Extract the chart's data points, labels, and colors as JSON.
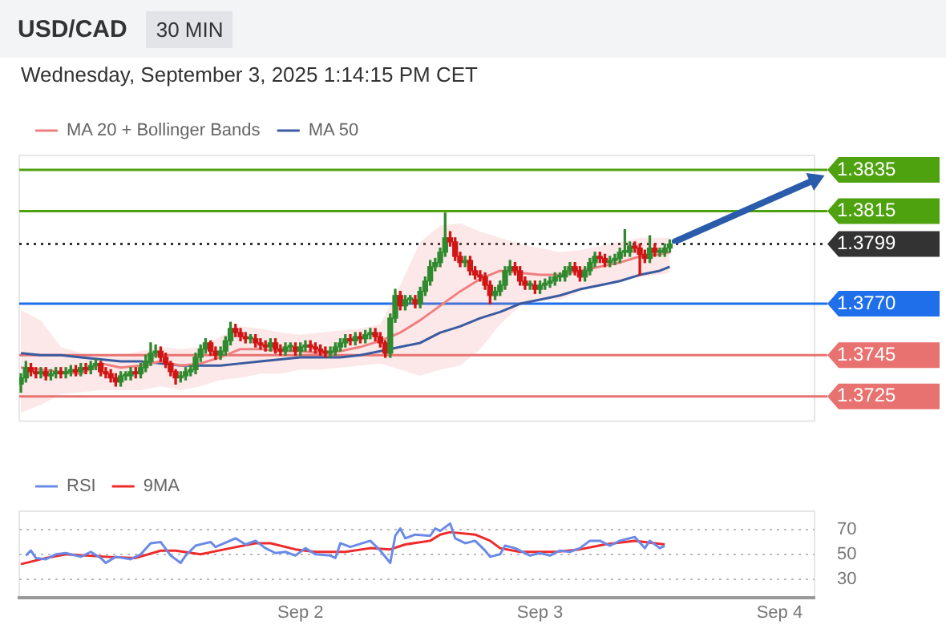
{
  "chart_data": [
    {
      "type": "candlestick",
      "title": "USD/CAD",
      "subtitle": "30 MIN",
      "annotations": [
        "Wednesday, September 3, 2025 1:14:15 PM CET"
      ],
      "legend": "top left",
      "tick_labels": "y",
      "xlim": [
        "2025-08-31T19:50",
        "2025-09-04T03:30"
      ],
      "ylim": [
        1.3713,
        1.3842
      ],
      "yticks": [
        1.3835,
        1.3815,
        1.3799,
        {
          "value": 1.377,
          "label": "1.3770"
        },
        1.3745,
        1.3725
      ],
      "x": [
        "2025-08-31T20:00",
        "2025-08-31T20:30",
        "2025-08-31T21:00",
        "2025-08-31T21:30",
        "2025-08-31T22:00",
        "2025-08-31T22:30",
        "2025-08-31T23:00",
        "2025-08-31T23:30",
        "2025-09-01T00:00",
        "2025-09-01T00:30",
        "2025-09-01T01:00",
        "2025-09-01T01:30",
        "2025-09-01T02:00",
        "2025-09-01T02:30",
        "2025-09-01T03:00",
        "2025-09-01T03:30",
        "2025-09-01T04:00",
        "2025-09-01T04:30",
        "2025-09-01T05:00",
        "2025-09-01T05:30",
        "2025-09-01T06:00",
        "2025-09-01T06:30",
        "2025-09-01T07:00",
        "2025-09-01T07:30",
        "2025-09-01T08:00",
        "2025-09-01T08:30",
        "2025-09-01T09:00",
        "2025-09-01T09:30",
        "2025-09-01T10:00",
        "2025-09-01T10:30",
        "2025-09-01T11:00",
        "2025-09-01T11:30",
        "2025-09-01T12:00",
        "2025-09-01T12:30",
        "2025-09-01T13:00",
        "2025-09-01T13:30",
        "2025-09-01T14:00",
        "2025-09-01T14:30",
        "2025-09-01T15:00",
        "2025-09-01T15:30",
        "2025-09-01T16:00",
        "2025-09-01T16:30",
        "2025-09-01T17:00",
        "2025-09-01T17:30",
        "2025-09-01T18:00",
        "2025-09-01T18:30",
        "2025-09-01T19:00",
        "2025-09-01T19:30",
        "2025-09-01T20:00",
        "2025-09-01T20:30",
        "2025-09-01T21:00",
        "2025-09-01T21:30",
        "2025-09-01T22:00",
        "2025-09-01T22:30",
        "2025-09-01T23:00",
        "2025-09-01T23:30",
        "2025-09-02T00:00",
        "2025-09-02T00:30",
        "2025-09-02T01:00",
        "2025-09-02T01:30",
        "2025-09-02T02:00",
        "2025-09-02T02:30",
        "2025-09-02T03:00",
        "2025-09-02T03:30",
        "2025-09-02T04:00",
        "2025-09-02T04:30",
        "2025-09-02T05:00",
        "2025-09-02T05:30",
        "2025-09-02T06:00",
        "2025-09-02T06:30",
        "2025-09-02T07:00",
        "2025-09-02T07:30",
        "2025-09-02T08:00",
        "2025-09-02T08:30",
        "2025-09-02T09:00",
        "2025-09-02T09:30",
        "2025-09-02T10:00",
        "2025-09-02T10:30",
        "2025-09-02T11:00",
        "2025-09-02T11:30",
        "2025-09-02T12:00",
        "2025-09-02T12:30",
        "2025-09-02T13:00",
        "2025-09-02T13:30",
        "2025-09-02T14:00",
        "2025-09-02T14:30",
        "2025-09-02T15:00",
        "2025-09-02T15:30",
        "2025-09-02T16:00",
        "2025-09-02T16:30",
        "2025-09-02T17:00",
        "2025-09-02T17:30",
        "2025-09-02T18:00",
        "2025-09-02T18:30",
        "2025-09-02T19:00",
        "2025-09-02T19:30",
        "2025-09-02T20:00",
        "2025-09-02T20:30",
        "2025-09-02T21:00",
        "2025-09-02T21:30",
        "2025-09-02T22:00",
        "2025-09-02T22:30",
        "2025-09-02T23:00",
        "2025-09-02T23:30",
        "2025-09-03T00:00",
        "2025-09-03T00:30",
        "2025-09-03T01:00",
        "2025-09-03T01:30",
        "2025-09-03T02:00",
        "2025-09-03T02:30",
        "2025-09-03T03:00",
        "2025-09-03T03:30",
        "2025-09-03T04:00",
        "2025-09-03T04:30",
        "2025-09-03T05:00",
        "2025-09-03T05:30",
        "2025-09-03T06:00",
        "2025-09-03T06:30",
        "2025-09-03T07:00",
        "2025-09-03T07:30",
        "2025-09-03T08:00",
        "2025-09-03T08:30",
        "2025-09-03T09:00",
        "2025-09-03T09:30",
        "2025-09-03T10:00",
        "2025-09-03T10:30",
        "2025-09-03T11:00",
        "2025-09-03T11:30",
        "2025-09-03T12:00",
        "2025-09-03T12:30",
        "2025-09-03T13:00"
      ],
      "ohlc": [
        [
          1.3731,
          1.3736,
          1.3727,
          1.3734
        ],
        [
          1.3734,
          1.3742,
          1.3732,
          1.3739
        ],
        [
          1.3739,
          1.3741,
          1.3735,
          1.3737
        ],
        [
          1.3737,
          1.3739,
          1.3734,
          1.3736
        ],
        [
          1.3736,
          1.3739,
          1.3734,
          1.3737
        ],
        [
          1.3737,
          1.3739,
          1.3733,
          1.3735
        ],
        [
          1.3735,
          1.3738,
          1.3733,
          1.3736
        ],
        [
          1.3736,
          1.3739,
          1.3734,
          1.3737
        ],
        [
          1.3737,
          1.3739,
          1.3734,
          1.3736
        ],
        [
          1.3736,
          1.3739,
          1.3734,
          1.3737
        ],
        [
          1.3737,
          1.374,
          1.3735,
          1.3738
        ],
        [
          1.3738,
          1.374,
          1.3735,
          1.3737
        ],
        [
          1.3737,
          1.3741,
          1.3735,
          1.3739
        ],
        [
          1.3739,
          1.3741,
          1.3736,
          1.3738
        ],
        [
          1.3738,
          1.3742,
          1.3736,
          1.374
        ],
        [
          1.374,
          1.3743,
          1.3738,
          1.3741
        ],
        [
          1.3741,
          1.3742,
          1.3735,
          1.3737
        ],
        [
          1.3737,
          1.3739,
          1.3734,
          1.3736
        ],
        [
          1.3736,
          1.3738,
          1.3732,
          1.3734
        ],
        [
          1.3734,
          1.3736,
          1.373,
          1.3732
        ],
        [
          1.3732,
          1.3737,
          1.373,
          1.3735
        ],
        [
          1.3735,
          1.3737,
          1.3733,
          1.3735
        ],
        [
          1.3735,
          1.3739,
          1.3733,
          1.3737
        ],
        [
          1.3737,
          1.3739,
          1.3734,
          1.3736
        ],
        [
          1.3736,
          1.3741,
          1.3734,
          1.3739
        ],
        [
          1.3739,
          1.3745,
          1.3737,
          1.3742
        ],
        [
          1.3742,
          1.3751,
          1.374,
          1.3746
        ],
        [
          1.3746,
          1.375,
          1.3744,
          1.3747
        ],
        [
          1.3747,
          1.3749,
          1.3742,
          1.3744
        ],
        [
          1.3744,
          1.3746,
          1.3739,
          1.3741
        ],
        [
          1.3741,
          1.3742,
          1.3735,
          1.3737
        ],
        [
          1.3737,
          1.3738,
          1.3731,
          1.3734
        ],
        [
          1.3734,
          1.3737,
          1.3732,
          1.3735
        ],
        [
          1.3735,
          1.3739,
          1.3733,
          1.3737
        ],
        [
          1.3737,
          1.374,
          1.3735,
          1.3738
        ],
        [
          1.3738,
          1.3746,
          1.3736,
          1.3744
        ],
        [
          1.3744,
          1.375,
          1.3742,
          1.3748
        ],
        [
          1.3748,
          1.3753,
          1.3746,
          1.3751
        ],
        [
          1.3751,
          1.3752,
          1.3745,
          1.3747
        ],
        [
          1.3747,
          1.3749,
          1.3743,
          1.3745
        ],
        [
          1.3745,
          1.3749,
          1.3743,
          1.3747
        ],
        [
          1.3747,
          1.3754,
          1.3745,
          1.3752
        ],
        [
          1.3752,
          1.3761,
          1.375,
          1.3758
        ],
        [
          1.3758,
          1.376,
          1.3754,
          1.3756
        ],
        [
          1.3756,
          1.3758,
          1.3752,
          1.3754
        ],
        [
          1.3754,
          1.3756,
          1.3751,
          1.3753
        ],
        [
          1.3753,
          1.3755,
          1.3751,
          1.3753
        ],
        [
          1.3753,
          1.3755,
          1.3749,
          1.3751
        ],
        [
          1.3751,
          1.3753,
          1.3748,
          1.375
        ],
        [
          1.375,
          1.3752,
          1.3747,
          1.3749
        ],
        [
          1.3749,
          1.3753,
          1.3747,
          1.3751
        ],
        [
          1.3751,
          1.3753,
          1.3746,
          1.3748
        ],
        [
          1.3748,
          1.375,
          1.3745,
          1.3747
        ],
        [
          1.3747,
          1.3751,
          1.3745,
          1.3749
        ],
        [
          1.3749,
          1.3751,
          1.3747,
          1.3749
        ],
        [
          1.3749,
          1.3751,
          1.3745,
          1.3747
        ],
        [
          1.3747,
          1.3751,
          1.3745,
          1.3749
        ],
        [
          1.3749,
          1.3752,
          1.3747,
          1.375
        ],
        [
          1.375,
          1.3752,
          1.3747,
          1.3749
        ],
        [
          1.3749,
          1.3751,
          1.3746,
          1.3748
        ],
        [
          1.3748,
          1.375,
          1.3745,
          1.3747
        ],
        [
          1.3747,
          1.3749,
          1.3744,
          1.3746
        ],
        [
          1.3746,
          1.3749,
          1.3744,
          1.3747
        ],
        [
          1.3747,
          1.3751,
          1.3745,
          1.3749
        ],
        [
          1.3749,
          1.3753,
          1.3747,
          1.3751
        ],
        [
          1.3751,
          1.3755,
          1.3749,
          1.3753
        ],
        [
          1.3753,
          1.3755,
          1.375,
          1.3752
        ],
        [
          1.3752,
          1.3756,
          1.375,
          1.3754
        ],
        [
          1.3754,
          1.3756,
          1.3751,
          1.3753
        ],
        [
          1.3753,
          1.3757,
          1.3751,
          1.3755
        ],
        [
          1.3755,
          1.3758,
          1.3753,
          1.3756
        ],
        [
          1.3756,
          1.3758,
          1.3752,
          1.3754
        ],
        [
          1.3754,
          1.3756,
          1.3749,
          1.3751
        ],
        [
          1.3751,
          1.3752,
          1.3744,
          1.3746
        ],
        [
          1.3746,
          1.3765,
          1.3744,
          1.3763
        ],
        [
          1.3763,
          1.3777,
          1.3761,
          1.3774
        ],
        [
          1.3774,
          1.3776,
          1.3767,
          1.3769
        ],
        [
          1.3769,
          1.3774,
          1.3767,
          1.3772
        ],
        [
          1.3772,
          1.3774,
          1.377,
          1.3772
        ],
        [
          1.3772,
          1.3774,
          1.3768,
          1.377
        ],
        [
          1.377,
          1.3778,
          1.3768,
          1.3776
        ],
        [
          1.3776,
          1.3783,
          1.3774,
          1.3781
        ],
        [
          1.3781,
          1.3791,
          1.3779,
          1.3788
        ],
        [
          1.3788,
          1.3792,
          1.3786,
          1.379
        ],
        [
          1.379,
          1.3797,
          1.3788,
          1.3795
        ],
        [
          1.3795,
          1.3814,
          1.3793,
          1.3802
        ],
        [
          1.3802,
          1.3805,
          1.3798,
          1.38
        ],
        [
          1.38,
          1.3802,
          1.3791,
          1.3793
        ],
        [
          1.3793,
          1.3795,
          1.3788,
          1.379
        ],
        [
          1.379,
          1.3793,
          1.3788,
          1.3791
        ],
        [
          1.3791,
          1.3793,
          1.3784,
          1.3786
        ],
        [
          1.3786,
          1.3788,
          1.3782,
          1.3784
        ],
        [
          1.3784,
          1.3786,
          1.3781,
          1.3783
        ],
        [
          1.3783,
          1.3785,
          1.3777,
          1.3779
        ],
        [
          1.3779,
          1.3781,
          1.377,
          1.3774
        ],
        [
          1.3774,
          1.3778,
          1.3772,
          1.3776
        ],
        [
          1.3776,
          1.3781,
          1.3774,
          1.3779
        ],
        [
          1.3779,
          1.3788,
          1.3777,
          1.3786
        ],
        [
          1.3786,
          1.3791,
          1.3784,
          1.3788
        ],
        [
          1.3788,
          1.379,
          1.3784,
          1.3786
        ],
        [
          1.3786,
          1.3788,
          1.3779,
          1.3781
        ],
        [
          1.3781,
          1.3783,
          1.3777,
          1.3779
        ],
        [
          1.3779,
          1.3781,
          1.3777,
          1.3779
        ],
        [
          1.3779,
          1.3781,
          1.3775,
          1.3777
        ],
        [
          1.3777,
          1.3781,
          1.3775,
          1.3779
        ],
        [
          1.3779,
          1.3782,
          1.3777,
          1.378
        ],
        [
          1.378,
          1.3783,
          1.3778,
          1.3781
        ],
        [
          1.3781,
          1.3785,
          1.3779,
          1.3783
        ],
        [
          1.3783,
          1.3785,
          1.3781,
          1.3783
        ],
        [
          1.3783,
          1.3788,
          1.3781,
          1.3786
        ],
        [
          1.3786,
          1.379,
          1.3784,
          1.3788
        ],
        [
          1.3788,
          1.379,
          1.3784,
          1.3786
        ],
        [
          1.3786,
          1.3788,
          1.3781,
          1.3783
        ],
        [
          1.3783,
          1.3788,
          1.3781,
          1.3786
        ],
        [
          1.3786,
          1.3792,
          1.3784,
          1.379
        ],
        [
          1.379,
          1.3795,
          1.3788,
          1.3793
        ],
        [
          1.3793,
          1.3795,
          1.379,
          1.3792
        ],
        [
          1.3792,
          1.3794,
          1.3788,
          1.379
        ],
        [
          1.379,
          1.3793,
          1.3788,
          1.3791
        ],
        [
          1.3791,
          1.3794,
          1.3789,
          1.3792
        ],
        [
          1.3792,
          1.3797,
          1.379,
          1.3795
        ],
        [
          1.3795,
          1.3806,
          1.3793,
          1.3795
        ],
        [
          1.3795,
          1.38,
          1.3793,
          1.3798
        ],
        [
          1.3798,
          1.38,
          1.3795,
          1.3797
        ],
        [
          1.3797,
          1.3799,
          1.3784,
          1.3794
        ],
        [
          1.3794,
          1.3796,
          1.379,
          1.3792
        ],
        [
          1.3792,
          1.3803,
          1.379,
          1.3797
        ],
        [
          1.3797,
          1.3799,
          1.3793,
          1.3795
        ],
        [
          1.3795,
          1.3797,
          1.3793,
          1.3795
        ],
        [
          1.3795,
          1.3799,
          1.3793,
          1.3797
        ],
        [
          1.3797,
          1.3801,
          1.3795,
          1.3799
        ]
      ],
      "series": [
        {
          "name": "MA 20 + Bollinger Bands",
          "type": "line",
          "color": "#f07f7f",
          "x": [
            "2025-08-31T20:00",
            "2025-08-31T22:00",
            "2025-09-01T00:00",
            "2025-09-01T02:00",
            "2025-09-01T04:00",
            "2025-09-01T06:00",
            "2025-09-01T08:00",
            "2025-09-01T10:00",
            "2025-09-01T12:00",
            "2025-09-01T14:00",
            "2025-09-01T16:00",
            "2025-09-01T18:00",
            "2025-09-01T20:00",
            "2025-09-01T22:00",
            "2025-09-02T00:00",
            "2025-09-02T02:00",
            "2025-09-02T04:00",
            "2025-09-02T06:00",
            "2025-09-02T08:00",
            "2025-09-02T10:00",
            "2025-09-02T12:00",
            "2025-09-02T14:00",
            "2025-09-02T16:00",
            "2025-09-02T18:00",
            "2025-09-02T20:00",
            "2025-09-02T22:00",
            "2025-09-03T00:00",
            "2025-09-03T02:00",
            "2025-09-03T04:00",
            "2025-09-03T06:00",
            "2025-09-03T08:00",
            "2025-09-03T10:00",
            "2025-09-03T12:00",
            "2025-09-03T13:00"
          ],
          "values": [
            1.3739,
            1.3738,
            1.3737,
            1.3736,
            1.3741,
            1.3739,
            1.374,
            1.3742,
            1.374,
            1.3741,
            1.3744,
            1.3748,
            1.3748,
            1.3747,
            1.3747,
            1.3746,
            1.3747,
            1.3749,
            1.3752,
            1.3756,
            1.3762,
            1.3769,
            1.3776,
            1.3782,
            1.3786,
            1.3785,
            1.3784,
            1.3784,
            1.3786,
            1.3788,
            1.379,
            1.3793,
            1.3794,
            1.3795
          ],
          "upper": [
            1.3767,
            1.3762,
            1.3749,
            1.3746,
            1.3745,
            1.3745,
            1.3747,
            1.3749,
            1.3748,
            1.3749,
            1.3754,
            1.3759,
            1.3758,
            1.3756,
            1.3755,
            1.3756,
            1.3757,
            1.3758,
            1.376,
            1.3779,
            1.38,
            1.3808,
            1.3809,
            1.3805,
            1.3802,
            1.3799,
            1.3797,
            1.3795,
            1.3796,
            1.3798,
            1.38,
            1.3802,
            1.3802,
            1.3802
          ],
          "lower": [
            1.3717,
            1.3721,
            1.3726,
            1.3727,
            1.3728,
            1.3728,
            1.3728,
            1.373,
            1.3728,
            1.373,
            1.3733,
            1.3734,
            1.3736,
            1.3736,
            1.3738,
            1.3738,
            1.3739,
            1.374,
            1.3741,
            1.3738,
            1.3735,
            1.3738,
            1.374,
            1.3748,
            1.376,
            1.3769,
            1.3772,
            1.3772,
            1.3776,
            1.3779,
            1.3781,
            1.3783,
            1.3784,
            1.3785
          ]
        },
        {
          "name": "MA 50",
          "type": "line",
          "color": "#3a5ba0",
          "x": [
            "2025-08-31T20:00",
            "2025-08-31T22:00",
            "2025-09-01T00:00",
            "2025-09-01T02:00",
            "2025-09-01T04:00",
            "2025-09-01T06:00",
            "2025-09-01T08:00",
            "2025-09-01T10:00",
            "2025-09-01T12:00",
            "2025-09-01T14:00",
            "2025-09-01T16:00",
            "2025-09-01T18:00",
            "2025-09-01T20:00",
            "2025-09-01T22:00",
            "2025-09-02T00:00",
            "2025-09-02T02:00",
            "2025-09-02T04:00",
            "2025-09-02T06:00",
            "2025-09-02T08:00",
            "2025-09-02T10:00",
            "2025-09-02T12:00",
            "2025-09-02T14:00",
            "2025-09-02T16:00",
            "2025-09-02T18:00",
            "2025-09-02T20:00",
            "2025-09-02T22:00",
            "2025-09-03T00:00",
            "2025-09-03T02:00",
            "2025-09-03T04:00",
            "2025-09-03T06:00",
            "2025-09-03T08:00",
            "2025-09-03T10:00",
            "2025-09-03T12:00",
            "2025-09-03T13:00"
          ],
          "values": [
            1.3746,
            1.3745,
            1.3745,
            1.3744,
            1.3743,
            1.3742,
            1.3742,
            1.3741,
            1.374,
            1.374,
            1.374,
            1.3741,
            1.3742,
            1.3743,
            1.3744,
            1.3744,
            1.3744,
            1.3745,
            1.3747,
            1.3749,
            1.3751,
            1.3756,
            1.3759,
            1.3763,
            1.3766,
            1.377,
            1.3772,
            1.3774,
            1.3777,
            1.3779,
            1.3781,
            1.3784,
            1.3786,
            1.3788
          ]
        }
      ],
      "ref_lines": [
        {
          "axis": "y",
          "value": 1.3835,
          "color": "#4ea20f"
        },
        {
          "axis": "y",
          "value": 1.3815,
          "color": "#4ea20f"
        },
        {
          "axis": "y",
          "value": 1.3799,
          "color": "#333333",
          "line_style": "dotted"
        },
        {
          "axis": "y",
          "value": 1.377,
          "color": "#1f6fea"
        },
        {
          "axis": "y",
          "value": 1.3745,
          "color": "#e8726f"
        },
        {
          "axis": "y",
          "value": 1.3725,
          "color": "#e8726f"
        }
      ]
    },
    {
      "type": "line",
      "legend": "top left",
      "grid": "y",
      "marker": "none",
      "xlim": [
        "2025-08-31T19:50",
        "2025-09-04T03:30"
      ],
      "xticks": [
        {
          "value": "2025-09-02T00:00",
          "label": "Sep 2"
        },
        {
          "value": "2025-09-03T00:00",
          "label": "Sep 3"
        },
        {
          "value": "2025-09-04T00:00",
          "label": "Sep 4"
        }
      ],
      "ylim": [
        15,
        85
      ],
      "yticks": [
        30,
        50,
        70
      ],
      "series": [
        {
          "name": "RSI",
          "color": "#6a8ae8",
          "x": [
            "2025-08-31T20:30",
            "2025-08-31T21:00",
            "2025-08-31T21:30",
            "2025-08-31T22:30",
            "2025-08-31T23:30",
            "2025-09-01T00:30",
            "2025-09-01T02:00",
            "2025-09-01T03:00",
            "2025-09-01T04:00",
            "2025-09-01T04:30",
            "2025-09-01T05:30",
            "2025-09-01T07:00",
            "2025-09-01T08:00",
            "2025-09-01T09:00",
            "2025-09-01T10:00",
            "2025-09-01T11:00",
            "2025-09-01T12:00",
            "2025-09-01T12:30",
            "2025-09-01T13:30",
            "2025-09-01T15:00",
            "2025-09-01T15:30",
            "2025-09-01T17:30",
            "2025-09-01T18:30",
            "2025-09-01T19:30",
            "2025-09-01T20:30",
            "2025-09-01T21:30",
            "2025-09-01T22:30",
            "2025-09-01T23:30",
            "2025-09-02T00:30",
            "2025-09-02T01:30",
            "2025-09-02T03:00",
            "2025-09-02T03:30",
            "2025-09-02T04:00",
            "2025-09-02T05:00",
            "2025-09-02T07:00",
            "2025-09-02T08:00",
            "2025-09-02T09:00",
            "2025-09-02T09:30",
            "2025-09-02T10:00",
            "2025-09-02T10:30",
            "2025-09-02T11:30",
            "2025-09-02T13:00",
            "2025-09-02T13:30",
            "2025-09-02T14:00",
            "2025-09-02T15:00",
            "2025-09-02T15:30",
            "2025-09-02T16:30",
            "2025-09-02T17:30",
            "2025-09-02T18:30",
            "2025-09-02T19:00",
            "2025-09-02T20:00",
            "2025-09-02T20:30",
            "2025-09-02T21:30",
            "2025-09-02T23:00",
            "2025-09-03T00:00",
            "2025-09-03T01:00",
            "2025-09-03T02:00",
            "2025-09-03T03:00",
            "2025-09-03T04:00",
            "2025-09-03T05:00",
            "2025-09-03T06:00",
            "2025-09-03T07:00",
            "2025-09-03T08:00",
            "2025-09-03T09:30",
            "2025-09-03T10:30",
            "2025-09-03T11:00",
            "2025-09-03T12:00",
            "2025-09-03T12:30"
          ],
          "values": [
            49,
            53,
            47,
            46,
            50,
            51,
            48,
            52,
            47,
            43,
            48,
            46,
            50,
            59,
            60,
            49,
            43,
            49,
            57,
            60,
            56,
            63,
            58,
            61,
            55,
            51,
            52,
            49,
            55,
            50,
            49,
            47,
            59,
            56,
            61,
            53,
            43,
            65,
            71,
            63,
            66,
            65,
            71,
            69,
            75,
            63,
            59,
            61,
            53,
            48,
            50,
            57,
            55,
            49,
            51,
            49,
            53,
            52,
            55,
            61,
            61,
            57,
            61,
            64,
            55,
            61,
            55,
            57
          ]
        },
        {
          "name": "9MA",
          "color": "#ee2a2a",
          "x": [
            "2025-08-31T20:00",
            "2025-08-31T22:30",
            "2025-09-01T00:30",
            "2025-09-01T04:30",
            "2025-09-01T07:30",
            "2025-09-01T10:00",
            "2025-09-01T11:30",
            "2025-09-01T14:00",
            "2025-09-01T17:00",
            "2025-09-01T19:30",
            "2025-09-01T21:00",
            "2025-09-01T23:30",
            "2025-09-02T01:30",
            "2025-09-02T04:30",
            "2025-09-02T07:00",
            "2025-09-02T09:00",
            "2025-09-02T10:30",
            "2025-09-02T13:00",
            "2025-09-02T14:00",
            "2025-09-02T15:00",
            "2025-09-02T17:30",
            "2025-09-02T19:00",
            "2025-09-02T20:00",
            "2025-09-02T22:00",
            "2025-09-03T01:30",
            "2025-09-03T04:00",
            "2025-09-03T06:30",
            "2025-09-03T09:30",
            "2025-09-03T12:30"
          ],
          "values": [
            42,
            47,
            50,
            48,
            47,
            53,
            53,
            50,
            55,
            59,
            59,
            54,
            52,
            52,
            55,
            54,
            58,
            61,
            66,
            68,
            66,
            61,
            55,
            52,
            52,
            54,
            58,
            61,
            58
          ]
        }
      ]
    }
  ]
}
